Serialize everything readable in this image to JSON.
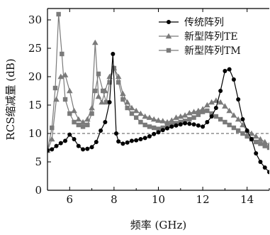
{
  "chart_data": {
    "type": "line",
    "xlabel": "频率 (GHz)",
    "ylabel": "RCS缩减量 (dB)",
    "xlim": [
      5,
      15
    ],
    "ylim": [
      0,
      32
    ],
    "xticks": [
      6,
      8,
      10,
      12,
      14
    ],
    "yticks": [
      0,
      5,
      10,
      15,
      20,
      25,
      30
    ],
    "grid": false,
    "legend_position": "top-right",
    "reference_line": {
      "y": 10,
      "style": "dashed",
      "color": "#555555"
    },
    "series": [
      {
        "name": "传统阵列",
        "color": "#000000",
        "marker": "circle",
        "x": [
          5.0,
          5.2,
          5.4,
          5.6,
          5.8,
          6.0,
          6.2,
          6.4,
          6.6,
          6.8,
          7.0,
          7.2,
          7.4,
          7.6,
          7.8,
          7.95,
          8.1,
          8.2,
          8.4,
          8.6,
          8.8,
          9.0,
          9.2,
          9.4,
          9.6,
          9.8,
          10.0,
          10.2,
          10.4,
          10.6,
          10.8,
          11.0,
          11.2,
          11.4,
          11.6,
          11.8,
          12.0,
          12.2,
          12.4,
          12.6,
          12.8,
          13.0,
          13.2,
          13.4,
          13.6,
          13.8,
          14.0,
          14.2,
          14.4,
          14.6,
          14.8,
          15.0
        ],
        "values": [
          7.0,
          7.2,
          7.8,
          8.3,
          8.7,
          9.8,
          9.0,
          7.8,
          7.2,
          7.3,
          7.6,
          8.5,
          10.5,
          12.0,
          15.5,
          24.0,
          10.0,
          8.6,
          8.2,
          8.4,
          8.7,
          8.8,
          9.0,
          9.2,
          9.5,
          9.9,
          10.2,
          10.6,
          10.9,
          11.2,
          11.4,
          11.6,
          11.8,
          11.7,
          11.6,
          11.4,
          11.2,
          12.0,
          13.0,
          14.5,
          17.5,
          21.0,
          21.3,
          19.5,
          16.0,
          12.5,
          10.5,
          9.0,
          6.5,
          5.0,
          4.0,
          3.2
        ]
      },
      {
        "name": "新型阵列TE",
        "color": "#7a7a7a",
        "marker": "triangle",
        "x": [
          5.0,
          5.2,
          5.4,
          5.6,
          5.8,
          6.0,
          6.2,
          6.4,
          6.6,
          6.8,
          7.0,
          7.15,
          7.3,
          7.45,
          7.6,
          7.8,
          8.0,
          8.2,
          8.4,
          8.6,
          8.8,
          9.0,
          9.2,
          9.4,
          9.6,
          9.8,
          10.0,
          10.2,
          10.4,
          10.6,
          10.8,
          11.0,
          11.2,
          11.4,
          11.6,
          11.8,
          12.0,
          12.2,
          12.4,
          12.6,
          12.8,
          13.0,
          13.2,
          13.4,
          13.6,
          13.8,
          14.0,
          14.2,
          14.4,
          14.6,
          14.8,
          15.0
        ],
        "values": [
          7.0,
          9.0,
          16.0,
          20.0,
          20.3,
          17.5,
          14.0,
          12.5,
          12.0,
          12.5,
          14.5,
          26.0,
          16.5,
          15.5,
          17.5,
          20.0,
          21.5,
          20.0,
          17.0,
          15.5,
          14.5,
          14.0,
          13.5,
          13.0,
          12.8,
          12.5,
          12.3,
          12.2,
          12.0,
          12.3,
          12.8,
          13.0,
          13.2,
          13.6,
          13.8,
          14.0,
          14.3,
          15.0,
          15.5,
          15.8,
          15.5,
          14.8,
          14.0,
          13.2,
          12.5,
          11.5,
          10.5,
          10.0,
          9.5,
          9.0,
          8.5,
          8.0
        ]
      },
      {
        "name": "新型阵列TM",
        "color": "#7a7a7a",
        "marker": "square",
        "x": [
          5.0,
          5.2,
          5.35,
          5.5,
          5.65,
          5.8,
          6.0,
          6.2,
          6.4,
          6.6,
          6.8,
          7.0,
          7.15,
          7.3,
          7.5,
          7.65,
          7.8,
          8.0,
          8.2,
          8.4,
          8.6,
          8.8,
          9.0,
          9.2,
          9.4,
          9.6,
          9.8,
          10.0,
          10.2,
          10.4,
          10.6,
          10.8,
          11.0,
          11.2,
          11.4,
          11.6,
          11.8,
          12.0,
          12.2,
          12.4,
          12.6,
          12.8,
          13.0,
          13.2,
          13.4,
          13.6,
          13.8,
          14.0,
          14.2,
          14.4,
          14.6,
          14.8,
          15.0
        ],
        "values": [
          7.0,
          11.0,
          18.0,
          31.0,
          24.0,
          16.0,
          13.5,
          12.0,
          11.5,
          11.2,
          11.5,
          13.5,
          17.5,
          20.5,
          17.5,
          15.5,
          19.0,
          21.5,
          19.0,
          16.0,
          14.5,
          13.5,
          12.8,
          12.0,
          11.5,
          11.2,
          11.0,
          10.8,
          11.0,
          11.3,
          11.5,
          11.8,
          12.0,
          12.2,
          12.5,
          12.8,
          13.3,
          13.8,
          14.0,
          13.5,
          13.0,
          12.5,
          12.0,
          11.5,
          11.0,
          10.5,
          10.0,
          9.5,
          9.0,
          8.5,
          8.2,
          7.8,
          7.5
        ]
      }
    ]
  }
}
